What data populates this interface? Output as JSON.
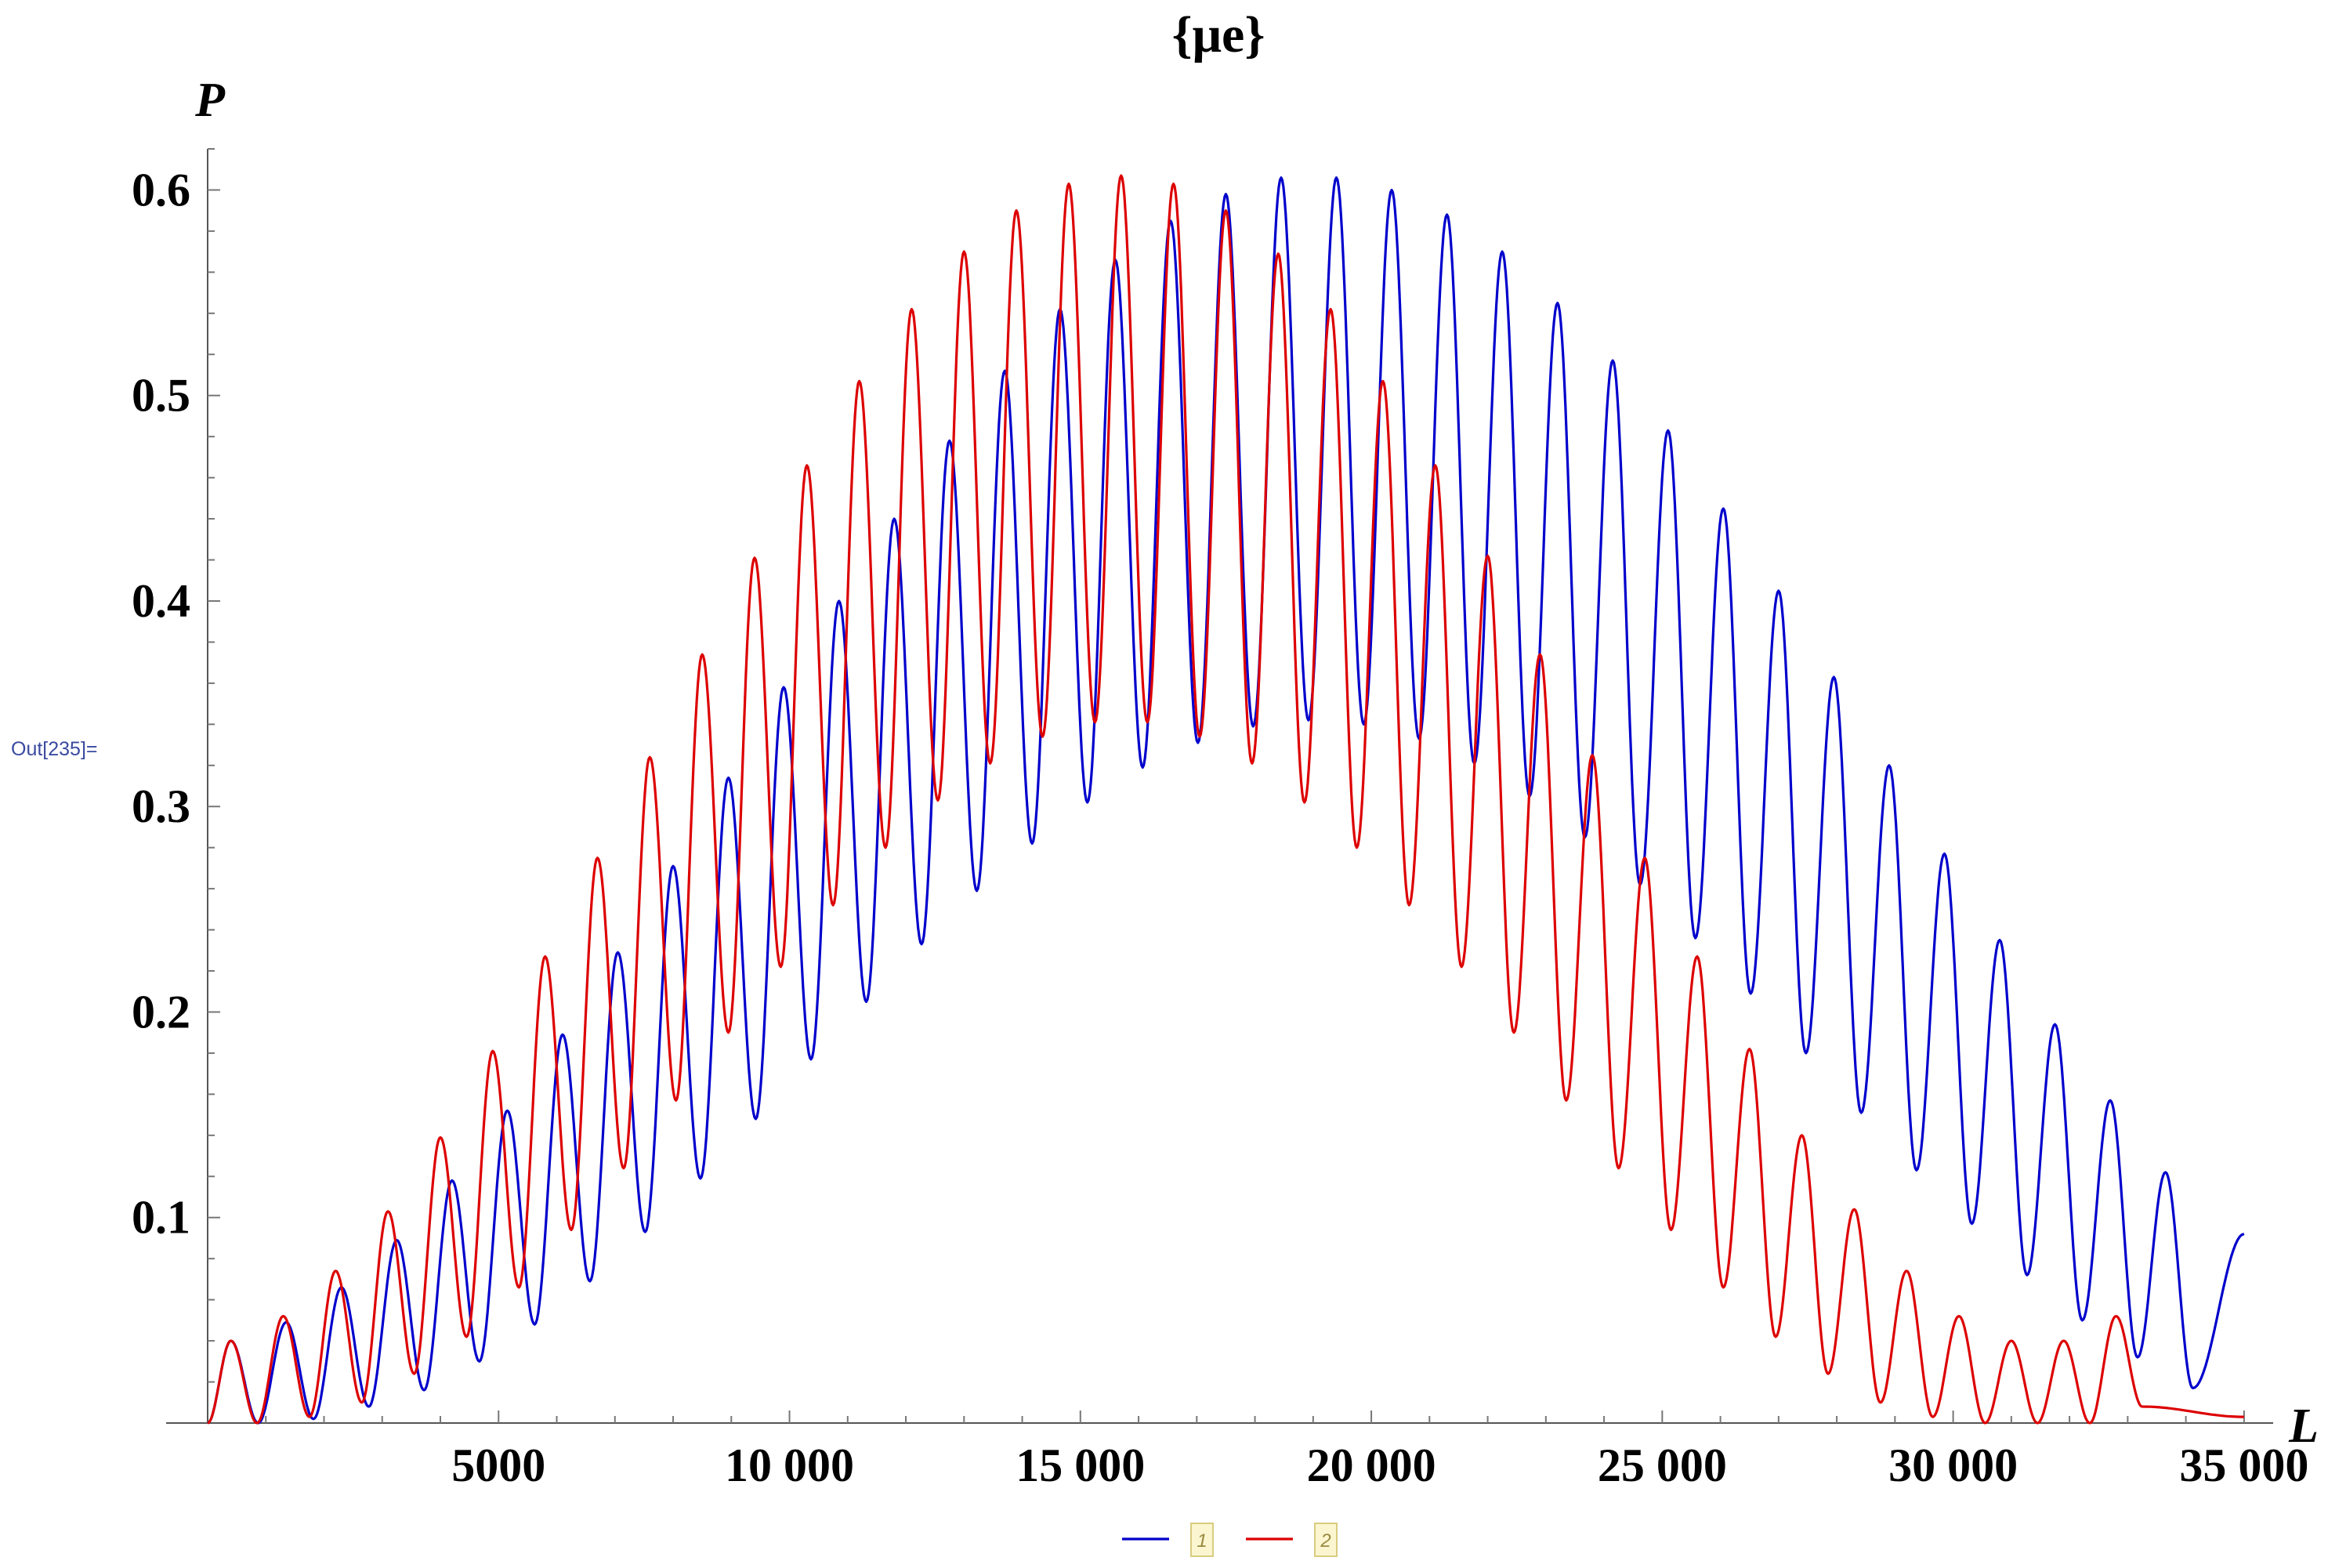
{
  "out_label": "Out[235]=",
  "chart_data": {
    "type": "line",
    "title": "{μe}",
    "xlabel": "L",
    "ylabel": "P",
    "xlim": [
      0,
      35500
    ],
    "ylim": [
      0,
      0.62
    ],
    "x_ticks": [
      {
        "value": 5000,
        "label": "5000"
      },
      {
        "value": 10000,
        "label": "10 000"
      },
      {
        "value": 15000,
        "label": "15 000"
      },
      {
        "value": 20000,
        "label": "20 000"
      },
      {
        "value": 25000,
        "label": "25 000"
      },
      {
        "value": 30000,
        "label": "30 000"
      },
      {
        "value": 35000,
        "label": "35 000"
      }
    ],
    "y_ticks": [
      {
        "value": 0.1,
        "label": "0.1"
      },
      {
        "value": 0.2,
        "label": "0.2"
      },
      {
        "value": 0.3,
        "label": "0.3"
      },
      {
        "value": 0.4,
        "label": "0.4"
      },
      {
        "value": 0.5,
        "label": "0.5"
      },
      {
        "value": 0.6,
        "label": "0.6"
      }
    ],
    "grid": false,
    "legend_position": "bottom-center",
    "x_range": [
      0,
      35000
    ],
    "series": [
      {
        "name": "1",
        "color": "#0000cc",
        "peaks": [
          [
            400,
            0.04
          ],
          [
            1350,
            0.049
          ],
          [
            2300,
            0.066
          ],
          [
            3250,
            0.089
          ],
          [
            4200,
            0.118
          ],
          [
            5150,
            0.152
          ],
          [
            6100,
            0.189
          ],
          [
            7050,
            0.229
          ],
          [
            8000,
            0.271
          ],
          [
            8950,
            0.314
          ],
          [
            9900,
            0.358
          ],
          [
            10850,
            0.4
          ],
          [
            11800,
            0.44
          ],
          [
            12750,
            0.478
          ],
          [
            13700,
            0.512
          ],
          [
            14650,
            0.542
          ],
          [
            15600,
            0.566
          ],
          [
            16550,
            0.585
          ],
          [
            17500,
            0.598
          ],
          [
            18450,
            0.606
          ],
          [
            19400,
            0.606
          ],
          [
            20350,
            0.6
          ],
          [
            21300,
            0.588
          ],
          [
            22250,
            0.57
          ],
          [
            23200,
            0.545
          ],
          [
            24150,
            0.517
          ],
          [
            25100,
            0.483
          ],
          [
            26050,
            0.445
          ],
          [
            27000,
            0.405
          ],
          [
            27950,
            0.363
          ],
          [
            28900,
            0.32
          ],
          [
            29850,
            0.277
          ],
          [
            30800,
            0.235
          ],
          [
            31750,
            0.194
          ],
          [
            32700,
            0.157
          ],
          [
            33650,
            0.122
          ]
        ],
        "troughs": [
          [
            0,
            0.0
          ],
          [
            870,
            0.0
          ],
          [
            1820,
            0.002
          ],
          [
            2770,
            0.008
          ],
          [
            3720,
            0.016
          ],
          [
            4670,
            0.03
          ],
          [
            5620,
            0.048
          ],
          [
            6570,
            0.069
          ],
          [
            7520,
            0.093
          ],
          [
            8470,
            0.119
          ],
          [
            9420,
            0.148
          ],
          [
            10370,
            0.177
          ],
          [
            11320,
            0.205
          ],
          [
            12270,
            0.233
          ],
          [
            13220,
            0.259
          ],
          [
            14170,
            0.282
          ],
          [
            15120,
            0.302
          ],
          [
            16070,
            0.319
          ],
          [
            17020,
            0.331
          ],
          [
            17970,
            0.339
          ],
          [
            18920,
            0.342
          ],
          [
            19870,
            0.34
          ],
          [
            20820,
            0.333
          ],
          [
            21770,
            0.321
          ],
          [
            22720,
            0.305
          ],
          [
            23670,
            0.285
          ],
          [
            24620,
            0.262
          ],
          [
            25570,
            0.236
          ],
          [
            26520,
            0.209
          ],
          [
            27470,
            0.18
          ],
          [
            28420,
            0.151
          ],
          [
            29370,
            0.123
          ],
          [
            30320,
            0.097
          ],
          [
            31270,
            0.072
          ],
          [
            32220,
            0.05
          ],
          [
            33170,
            0.032
          ],
          [
            34120,
            0.017
          ]
        ],
        "end": [
          35000,
          0.092
        ]
      },
      {
        "name": "2",
        "color": "#dd0000",
        "peaks": [
          [
            400,
            0.04
          ],
          [
            1300,
            0.052
          ],
          [
            2200,
            0.074
          ],
          [
            3100,
            0.103
          ],
          [
            4000,
            0.139
          ],
          [
            4900,
            0.181
          ],
          [
            5800,
            0.227
          ],
          [
            6700,
            0.275
          ],
          [
            7600,
            0.324
          ],
          [
            8500,
            0.374
          ],
          [
            9400,
            0.421
          ],
          [
            10300,
            0.466
          ],
          [
            11200,
            0.507
          ],
          [
            12100,
            0.542
          ],
          [
            13000,
            0.57
          ],
          [
            13900,
            0.59
          ],
          [
            14800,
            0.603
          ],
          [
            15700,
            0.607
          ],
          [
            16600,
            0.603
          ],
          [
            17500,
            0.59
          ],
          [
            18400,
            0.569
          ],
          [
            19300,
            0.542
          ],
          [
            20200,
            0.507
          ],
          [
            21100,
            0.466
          ],
          [
            22000,
            0.422
          ],
          [
            22900,
            0.374
          ],
          [
            23800,
            0.325
          ],
          [
            24700,
            0.275
          ],
          [
            25600,
            0.227
          ],
          [
            26500,
            0.182
          ],
          [
            27400,
            0.14
          ],
          [
            28300,
            0.104
          ],
          [
            29200,
            0.074
          ],
          [
            30100,
            0.052
          ],
          [
            31000,
            0.04
          ],
          [
            31900,
            0.04
          ],
          [
            32800,
            0.052
          ]
        ],
        "troughs": [
          [
            0,
            0.0
          ],
          [
            850,
            0.0
          ],
          [
            1750,
            0.003
          ],
          [
            2650,
            0.01
          ],
          [
            3550,
            0.024
          ],
          [
            4450,
            0.042
          ],
          [
            5350,
            0.066
          ],
          [
            6250,
            0.094
          ],
          [
            7150,
            0.124
          ],
          [
            8050,
            0.157
          ],
          [
            8950,
            0.19
          ],
          [
            9850,
            0.222
          ],
          [
            10750,
            0.252
          ],
          [
            11650,
            0.28
          ],
          [
            12550,
            0.303
          ],
          [
            13450,
            0.321
          ],
          [
            14350,
            0.334
          ],
          [
            15250,
            0.341
          ],
          [
            16150,
            0.341
          ],
          [
            17050,
            0.334
          ],
          [
            17950,
            0.321
          ],
          [
            18850,
            0.302
          ],
          [
            19750,
            0.28
          ],
          [
            20650,
            0.252
          ],
          [
            21550,
            0.222
          ],
          [
            22450,
            0.19
          ],
          [
            23350,
            0.157
          ],
          [
            24250,
            0.124
          ],
          [
            25150,
            0.094
          ],
          [
            26050,
            0.066
          ],
          [
            26950,
            0.042
          ],
          [
            27850,
            0.024
          ],
          [
            28750,
            0.01
          ],
          [
            29650,
            0.003
          ],
          [
            30550,
            0.0
          ],
          [
            31450,
            0.0
          ],
          [
            32350,
            0.0
          ],
          [
            33250,
            0.008
          ]
        ],
        "end": [
          35000,
          0.003
        ]
      }
    ]
  }
}
